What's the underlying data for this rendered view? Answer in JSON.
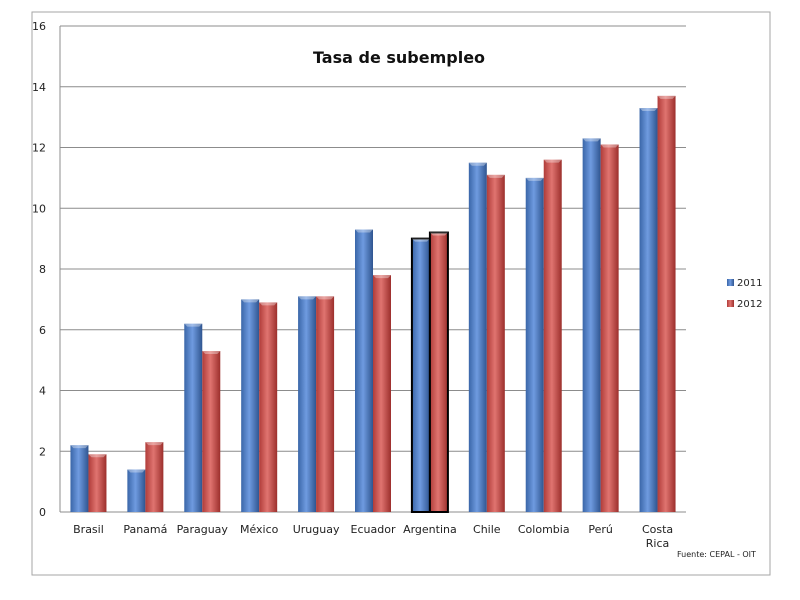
{
  "chart_data": {
    "type": "bar",
    "title": "Tasa de subempleo",
    "source": "Fuente: CEPAL - OIT",
    "xlabel": "",
    "ylabel": "",
    "ylim": [
      0,
      16
    ],
    "yticks": [
      0,
      2,
      4,
      6,
      8,
      10,
      12,
      14,
      16
    ],
    "grid": true,
    "legend_position": "right",
    "categories": [
      "Brasil",
      "Panamá",
      "Paraguay",
      "México",
      "Uruguay",
      "Ecuador",
      "Argentina",
      "Chile",
      "Colombia",
      "Perú",
      "Costa Rica"
    ],
    "highlighted_category": "Argentina",
    "series": [
      {
        "name": "2011",
        "color": "#4f81bd",
        "values": [
          2.2,
          1.4,
          6.2,
          7.0,
          7.1,
          9.3,
          9.0,
          11.5,
          11.0,
          12.3,
          13.3
        ]
      },
      {
        "name": "2012",
        "color": "#c0504d",
        "values": [
          1.9,
          2.3,
          5.3,
          6.9,
          7.1,
          7.8,
          9.2,
          11.1,
          11.6,
          12.1,
          13.7
        ]
      }
    ]
  }
}
